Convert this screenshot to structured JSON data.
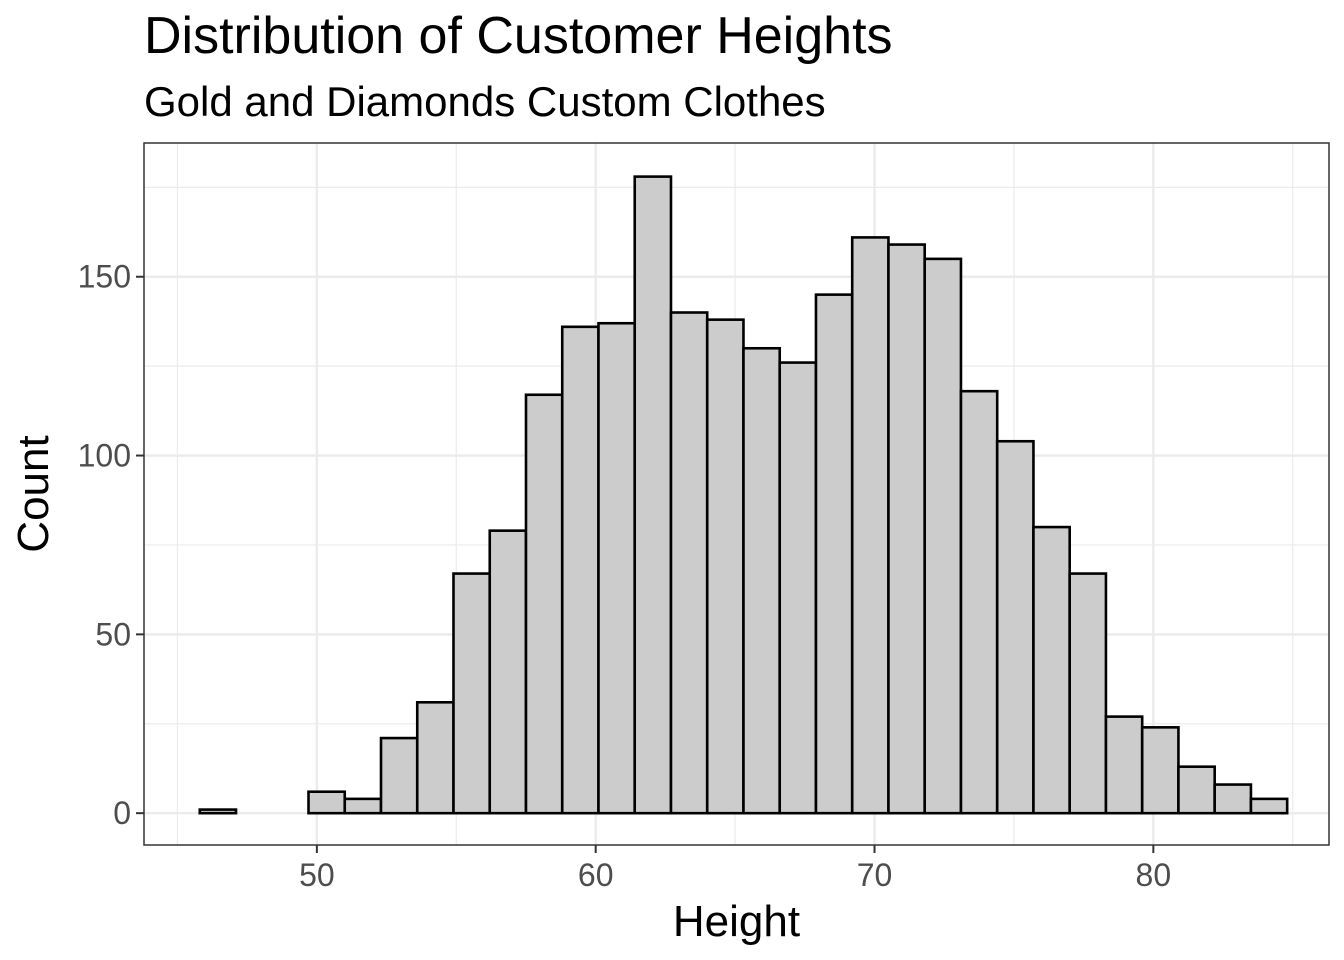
{
  "chart_data": {
    "type": "bar",
    "title": "Distribution of Customer Heights",
    "subtitle": "Gold and Diamonds Custom Clothes",
    "xlabel": "Height",
    "ylabel": "Count",
    "bin_width": 1.3,
    "bins": [
      {
        "start": 45.8,
        "end": 47.1,
        "count": 1
      },
      {
        "start": 47.1,
        "end": 48.4,
        "count": 0
      },
      {
        "start": 48.4,
        "end": 49.7,
        "count": 0
      },
      {
        "start": 49.7,
        "end": 51.0,
        "count": 6
      },
      {
        "start": 51.0,
        "end": 52.3,
        "count": 4
      },
      {
        "start": 52.3,
        "end": 53.6,
        "count": 21
      },
      {
        "start": 53.6,
        "end": 54.9,
        "count": 31
      },
      {
        "start": 54.9,
        "end": 56.2,
        "count": 67
      },
      {
        "start": 56.2,
        "end": 57.5,
        "count": 79
      },
      {
        "start": 57.5,
        "end": 58.8,
        "count": 117
      },
      {
        "start": 58.8,
        "end": 60.1,
        "count": 136
      },
      {
        "start": 60.1,
        "end": 61.4,
        "count": 137
      },
      {
        "start": 61.4,
        "end": 62.7,
        "count": 178
      },
      {
        "start": 62.7,
        "end": 64.0,
        "count": 140
      },
      {
        "start": 64.0,
        "end": 65.3,
        "count": 138
      },
      {
        "start": 65.3,
        "end": 66.6,
        "count": 130
      },
      {
        "start": 66.6,
        "end": 67.9,
        "count": 126
      },
      {
        "start": 67.9,
        "end": 69.2,
        "count": 145
      },
      {
        "start": 69.2,
        "end": 70.5,
        "count": 161
      },
      {
        "start": 70.5,
        "end": 71.8,
        "count": 159
      },
      {
        "start": 71.8,
        "end": 73.1,
        "count": 155
      },
      {
        "start": 73.1,
        "end": 74.4,
        "count": 118
      },
      {
        "start": 74.4,
        "end": 75.7,
        "count": 104
      },
      {
        "start": 75.7,
        "end": 77.0,
        "count": 80
      },
      {
        "start": 77.0,
        "end": 78.3,
        "count": 67
      },
      {
        "start": 78.3,
        "end": 79.6,
        "count": 27
      },
      {
        "start": 79.6,
        "end": 80.9,
        "count": 24
      },
      {
        "start": 80.9,
        "end": 82.2,
        "count": 13
      },
      {
        "start": 82.2,
        "end": 83.5,
        "count": 8
      },
      {
        "start": 83.5,
        "end": 84.8,
        "count": 4
      }
    ],
    "xlim": [
      43.8,
      86.3
    ],
    "ylim": [
      -8.9,
      187.4
    ],
    "x_ticks": [
      50,
      60,
      70,
      80
    ],
    "x_tick_labels": [
      "50",
      "60",
      "70",
      "80"
    ],
    "x_minor_ticks": [
      45,
      55,
      65,
      75,
      85
    ],
    "y_ticks": [
      0,
      50,
      100,
      150
    ],
    "y_tick_labels": [
      "0",
      "50",
      "100",
      "150"
    ],
    "y_minor_ticks": [
      25,
      75,
      125,
      175
    ],
    "grid": true,
    "bar_fill": "#cccccc",
    "bar_stroke": "#000000",
    "grid_color": "#ebebeb",
    "panel_border": "#333333",
    "tick_label_color": "#4d4d4d"
  }
}
